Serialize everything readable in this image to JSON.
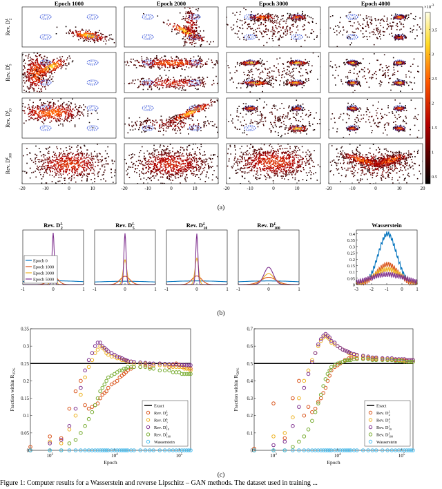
{
  "figure": {
    "part_labels": [
      "(a)",
      "(b)",
      "(c)"
    ],
    "bottom_caption": "Figure 1: Computer results for a Wasserstein and reverse Lipschitz – GAN methods. The dataset used in training ..."
  },
  "chart_data": [
    {
      "id": "a",
      "type": "heatmap",
      "title": "",
      "columns": [
        "Epoch 1000",
        "Epoch 2000",
        "Epoch 3000",
        "Epoch 4000"
      ],
      "row_labels": [
        {
          "base": "Rev. D",
          "sub": "2",
          "sup": "L"
        },
        {
          "base": "Rev. D",
          "sub": "5",
          "sup": "L"
        },
        {
          "base": "Rev. D",
          "sub": "10",
          "sup": "L"
        },
        {
          "base": "Rev. D",
          "sub": "100",
          "sup": "L"
        }
      ],
      "xlim": [
        -20,
        20
      ],
      "xticks": [
        -20,
        -10,
        0,
        10,
        20
      ],
      "target_gaussian_centers": [
        [
          -10,
          5
        ],
        [
          10,
          5
        ],
        [
          -10,
          -5
        ],
        [
          10,
          -5
        ]
      ],
      "colorbar": {
        "ticks": [
          0.5,
          1,
          1.5,
          2,
          2.5,
          3,
          3.5
        ],
        "exponent_label": "×10",
        "exponent": "-3",
        "colormap": "hot (black → red → yellow → white)"
      }
    },
    {
      "id": "b",
      "type": "line",
      "panels": [
        {
          "title": {
            "base": "Rev. D",
            "sub": "2",
            "sup": "L"
          },
          "xlim": [
            -1,
            1
          ],
          "ylim": [
            0,
            5.8
          ],
          "xticks": [
            -1,
            0,
            1
          ],
          "series_params": [
            [
              0.4,
              0.55
            ],
            [
              0.95,
              0.15
            ],
            [
              2.9,
              0.06
            ],
            [
              5.5,
              0.035
            ]
          ]
        },
        {
          "title": {
            "base": "Rev. D",
            "sub": "5",
            "sup": "L"
          },
          "xlim": [
            -1,
            1
          ],
          "ylim": [
            0,
            6.6
          ],
          "xticks": [
            -1,
            0,
            1
          ],
          "series_params": [
            [
              0.4,
              0.55
            ],
            [
              1.0,
              0.16
            ],
            [
              3.0,
              0.06
            ],
            [
              6.2,
              0.035
            ]
          ]
        },
        {
          "title": {
            "base": "Rev. D",
            "sub": "10",
            "sup": "L"
          },
          "xlim": [
            -1,
            1
          ],
          "ylim": [
            0,
            6.0
          ],
          "xticks": [
            -1,
            0,
            1
          ],
          "series_params": [
            [
              0.4,
              0.55
            ],
            [
              0.95,
              0.16
            ],
            [
              2.9,
              0.06
            ],
            [
              5.6,
              0.035
            ]
          ]
        },
        {
          "title": {
            "base": "Rev. D",
            "sub": "100",
            "sup": "L"
          },
          "xlim": [
            -1,
            1
          ],
          "ylim": [
            0,
            6.0
          ],
          "xticks": [
            -1,
            0,
            1
          ],
          "series_params": [
            [
              0.4,
              0.55
            ],
            [
              0.8,
              0.25
            ],
            [
              1.2,
              0.18
            ],
            [
              1.9,
              0.15
            ]
          ]
        },
        {
          "title": {
            "base": "Wasserstein",
            "sub": "",
            "sup": ""
          },
          "xlim": [
            -3,
            1
          ],
          "ylim": [
            0,
            0.43
          ],
          "xticks": [
            -3,
            -2,
            -1,
            0,
            1
          ],
          "yticks": [
            0,
            0.05,
            0.1,
            0.15,
            0.2,
            0.25,
            0.3,
            0.35,
            0.4
          ],
          "series_params": [
            [
              0.4,
              0.6
            ],
            [
              0.16,
              0.7
            ],
            [
              0.12,
              0.9
            ],
            [
              0.08,
              1.2
            ]
          ]
        }
      ],
      "series": [
        {
          "name": "Epoch 0",
          "color": "#0072bd"
        },
        {
          "name": "Epoch 1000",
          "color": "#d95319"
        },
        {
          "name": "Epoch 3000",
          "color": "#edb120"
        },
        {
          "name": "Epoch 5000",
          "color": "#7e2f8e"
        }
      ]
    },
    {
      "id": "c",
      "type": "scatter",
      "xlabel": "Epoch",
      "x_scale": "log",
      "xlim": [
        500,
        150000
      ],
      "x_tick_labels": [
        {
          "base": "10",
          "exp": "3",
          "value": 1000
        },
        {
          "base": "10",
          "exp": "4",
          "value": 10000
        },
        {
          "base": "10",
          "exp": "5",
          "value": 100000
        }
      ],
      "x_samples": [
        500,
        1000,
        1500,
        2000,
        2500,
        3000,
        3500,
        4000,
        4500,
        5000,
        5500,
        6000,
        6500,
        7000,
        7500,
        8000,
        9000,
        10000,
        11000,
        12000,
        13000,
        14000,
        15000,
        16000,
        18000,
        20000,
        25000,
        30000,
        35000,
        40000,
        50000,
        60000,
        70000,
        80000,
        90000,
        100000,
        110000,
        120000,
        130000,
        140000,
        150000
      ],
      "legend": [
        "Exact",
        "Rev. D^L_2",
        "Rev. D^L_5",
        "Rev. D^L_10",
        "Rev. D^L_100",
        "Wasserstein"
      ],
      "legend_items": [
        {
          "label": "Exact",
          "base": "Exact",
          "sub": "",
          "sup": "",
          "kind": "line",
          "color": "#000000"
        },
        {
          "label": "Rev. D^L_2",
          "base": "Rev. D",
          "sub": "2",
          "sup": "L",
          "kind": "marker",
          "color": "#d95319"
        },
        {
          "label": "Rev. D^L_5",
          "base": "Rev. D",
          "sub": "5",
          "sup": "L",
          "kind": "marker",
          "color": "#edb120"
        },
        {
          "label": "Rev. D^L_10",
          "base": "Rev. D",
          "sub": "10",
          "sup": "L",
          "kind": "marker",
          "color": "#7e2f8e"
        },
        {
          "label": "Rev. D^L_100",
          "base": "Rev. D",
          "sub": "100",
          "sup": "L",
          "kind": "marker",
          "color": "#77ac30"
        },
        {
          "label": "Wasserstein",
          "base": "Wasserstein",
          "sub": "",
          "sup": "",
          "kind": "marker",
          "color": "#4dbeee"
        }
      ],
      "panels": [
        {
          "ylabel": "Fraction within R",
          "ylabel_sub": "25%",
          "ylim": [
            0,
            0.35
          ],
          "yticks": [
            0,
            0.05,
            0.1,
            0.15,
            0.2,
            0.25,
            0.3,
            0.35
          ],
          "exact": 0.25,
          "series": {
            "Rev. D^L_2": [
              0.01,
              0.04,
              0.035,
              0.12,
              0.17,
              0.2,
              0.13,
              0.12,
              0.125,
              0.13,
              0.135,
              0.15,
              0.16,
              0.165,
              0.17,
              0.18,
              0.19,
              0.195,
              0.2,
              0.21,
              0.215,
              0.22,
              0.225,
              0.23,
              0.235,
              0.24,
              0.24,
              0.245,
              0.24,
              0.245,
              0.25,
              0.245,
              0.24,
              0.245,
              0.25,
              0.245,
              0.24,
              0.24,
              0.235,
              0.235,
              0.235
            ],
            "Rev. D^L_5": [
              0.0,
              0.025,
              0.02,
              0.06,
              0.1,
              0.16,
              0.21,
              0.24,
              0.26,
              0.28,
              0.29,
              0.3,
              0.295,
              0.29,
              0.28,
              0.275,
              0.27,
              0.27,
              0.265,
              0.265,
              0.26,
              0.26,
              0.258,
              0.255,
              0.255,
              0.25,
              0.25,
              0.25,
              0.25,
              0.245,
              0.245,
              0.245,
              0.245,
              0.24,
              0.24,
              0.24,
              0.24,
              0.235,
              0.235,
              0.235,
              0.23
            ],
            "Rev. D^L_10": [
              0.0,
              0.02,
              0.03,
              0.07,
              0.12,
              0.18,
              0.23,
              0.26,
              0.28,
              0.3,
              0.31,
              0.31,
              0.3,
              0.295,
              0.29,
              0.285,
              0.28,
              0.275,
              0.27,
              0.268,
              0.265,
              0.262,
              0.26,
              0.258,
              0.256,
              0.255,
              0.253,
              0.252,
              0.25,
              0.25,
              0.25,
              0.249,
              0.248,
              0.248,
              0.247,
              0.247,
              0.246,
              0.246,
              0.245,
              0.245,
              0.245
            ],
            "Rev. D^L_100": [
              0.0,
              0.0,
              0.0,
              0.02,
              0.03,
              0.05,
              0.07,
              0.09,
              0.11,
              0.13,
              0.15,
              0.17,
              0.18,
              0.19,
              0.2,
              0.21,
              0.215,
              0.22,
              0.225,
              0.23,
              0.23,
              0.235,
              0.235,
              0.24,
              0.24,
              0.24,
              0.24,
              0.24,
              0.235,
              0.235,
              0.23,
              0.23,
              0.23,
              0.225,
              0.225,
              0.225,
              0.22,
              0.22,
              0.22,
              0.22,
              0.22
            ],
            "Wasserstein": [
              0.0,
              0.0,
              0.0,
              0.0,
              0.0,
              0.0,
              0.0,
              0.0,
              0.0,
              0.0,
              0.0,
              0.0,
              0.0,
              0.0,
              0.0,
              0.0,
              0.0,
              0.0,
              0.0,
              0.0,
              0.0,
              0.0,
              0.0,
              0.0,
              0.0,
              0.0,
              0.0,
              0.0,
              0.0,
              0.0,
              0.0,
              0.0,
              0.0,
              0.0,
              0.0,
              0.0,
              0.0,
              0.0,
              0.0,
              0.0,
              0.0
            ]
          }
        },
        {
          "ylabel": "Fraction within R",
          "ylabel_sub": "50%",
          "ylim": [
            0,
            0.7
          ],
          "yticks": [
            0,
            0.1,
            0.2,
            0.3,
            0.4,
            0.5,
            0.6,
            0.7
          ],
          "exact": 0.5,
          "series": {
            "Rev. D^L_2": [
              0.01,
              0.27,
              0.07,
              0.3,
              0.4,
              0.2,
              0.25,
              0.22,
              0.24,
              0.28,
              0.3,
              0.33,
              0.36,
              0.4,
              0.43,
              0.46,
              0.48,
              0.49,
              0.5,
              0.51,
              0.52,
              0.52,
              0.53,
              0.53,
              0.535,
              0.53,
              0.53,
              0.53,
              0.525,
              0.525,
              0.525,
              0.52,
              0.52,
              0.52,
              0.52,
              0.515,
              0.515,
              0.515,
              0.51,
              0.51,
              0.51
            ],
            "Rev. D^L_5": [
              0.0,
              0.08,
              0.1,
              0.19,
              0.3,
              0.4,
              0.46,
              0.52,
              0.56,
              0.6,
              0.63,
              0.65,
              0.66,
              0.65,
              0.64,
              0.62,
              0.61,
              0.6,
              0.59,
              0.58,
              0.575,
              0.57,
              0.56,
              0.555,
              0.55,
              0.545,
              0.54,
              0.535,
              0.53,
              0.53,
              0.53,
              0.525,
              0.525,
              0.525,
              0.52,
              0.52,
              0.52,
              0.52,
              0.52,
              0.52,
              0.52
            ],
            "Rev. D^L_10": [
              0.0,
              0.03,
              0.05,
              0.14,
              0.25,
              0.36,
              0.44,
              0.51,
              0.56,
              0.61,
              0.64,
              0.66,
              0.67,
              0.66,
              0.65,
              0.63,
              0.62,
              0.6,
              0.59,
              0.58,
              0.575,
              0.57,
              0.565,
              0.56,
              0.555,
              0.55,
              0.545,
              0.54,
              0.535,
              0.535,
              0.53,
              0.53,
              0.53,
              0.525,
              0.525,
              0.525,
              0.525,
              0.52,
              0.52,
              0.52,
              0.52
            ],
            "Rev. D^L_100": [
              0.0,
              0.0,
              0.0,
              0.02,
              0.05,
              0.08,
              0.12,
              0.17,
              0.22,
              0.27,
              0.32,
              0.37,
              0.41,
              0.44,
              0.46,
              0.48,
              0.49,
              0.5,
              0.505,
              0.51,
              0.515,
              0.52,
              0.52,
              0.52,
              0.525,
              0.525,
              0.525,
              0.525,
              0.52,
              0.52,
              0.52,
              0.52,
              0.52,
              0.515,
              0.515,
              0.515,
              0.51,
              0.51,
              0.51,
              0.51,
              0.51
            ],
            "Wasserstein": [
              0.0,
              0.0,
              0.0,
              0.0,
              0.0,
              0.0,
              0.0,
              0.0,
              0.0,
              0.0,
              0.0,
              0.0,
              0.0,
              0.0,
              0.0,
              0.0,
              0.0,
              0.0,
              0.0,
              0.0,
              0.0,
              0.0,
              0.0,
              0.0,
              0.0,
              0.0,
              0.0,
              0.0,
              0.0,
              0.0,
              0.0,
              0.0,
              0.0,
              0.0,
              0.0,
              0.0,
              0.0,
              0.0,
              0.0,
              0.0,
              0.0
            ]
          }
        }
      ]
    }
  ]
}
